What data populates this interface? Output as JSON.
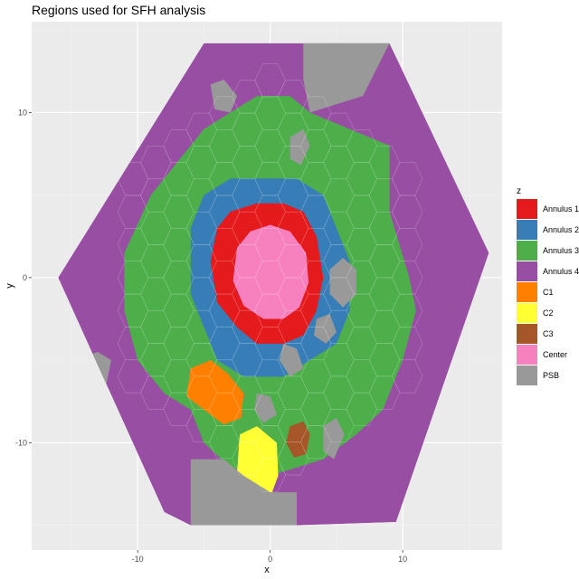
{
  "chart_data": {
    "type": "heatmap",
    "title": "Regions used for SFH analysis",
    "xlabel": "x",
    "ylabel": "y",
    "xlim": [
      -18,
      17.5
    ],
    "ylim": [
      -16.5,
      15.5
    ],
    "x_ticks": [
      -10,
      0,
      10
    ],
    "y_ticks": [
      -10,
      0,
      10
    ],
    "grid": true,
    "legend": {
      "title": "z",
      "position": "right",
      "entries": [
        {
          "label": "Annulus 1",
          "color": "#e41a1c"
        },
        {
          "label": "Annulus 2",
          "color": "#377eb8"
        },
        {
          "label": "Annulus 3",
          "color": "#4daf4a"
        },
        {
          "label": "Annulus 4",
          "color": "#984ea3"
        },
        {
          "label": "C1",
          "color": "#ff7f00"
        },
        {
          "label": "C2",
          "color": "#ffff33"
        },
        {
          "label": "C3",
          "color": "#a65628"
        },
        {
          "label": "Center",
          "color": "#f781bf"
        },
        {
          "label": "PSB",
          "color": "#999999"
        }
      ]
    },
    "outer_boundary": [
      [
        -5,
        14.2
      ],
      [
        9,
        14.2
      ],
      [
        16.5,
        1.5
      ],
      [
        9.5,
        -14.8
      ],
      [
        2,
        -15
      ],
      [
        -6,
        -15
      ],
      [
        -8,
        -14.2
      ],
      [
        -16,
        0
      ]
    ],
    "regions": [
      {
        "z": "Annulus 3",
        "polygon": [
          [
            -11,
            1.5
          ],
          [
            -9,
            5
          ],
          [
            -7,
            7
          ],
          [
            -5,
            9
          ],
          [
            -3,
            10
          ],
          [
            -1,
            11
          ],
          [
            1.5,
            11
          ],
          [
            3,
            10
          ],
          [
            6,
            9
          ],
          [
            9,
            8
          ],
          [
            9,
            4
          ],
          [
            10.5,
            0
          ],
          [
            11,
            -2
          ],
          [
            10,
            -5
          ],
          [
            8.5,
            -8
          ],
          [
            6.5,
            -9.5
          ],
          [
            4,
            -11
          ],
          [
            0,
            -12
          ],
          [
            -3,
            -11.5
          ],
          [
            -5,
            -10
          ],
          [
            -6,
            -8
          ],
          [
            -8,
            -7
          ],
          [
            -10,
            -5
          ],
          [
            -11,
            -2
          ]
        ]
      },
      {
        "z": "Annulus 2",
        "polygon": [
          [
            -6,
            3
          ],
          [
            -5,
            5
          ],
          [
            -3,
            6
          ],
          [
            -1,
            6
          ],
          [
            2,
            6
          ],
          [
            4,
            5
          ],
          [
            5,
            3
          ],
          [
            6,
            1
          ],
          [
            6,
            -2
          ],
          [
            5,
            -4
          ],
          [
            3,
            -5
          ],
          [
            1,
            -6
          ],
          [
            -2,
            -6
          ],
          [
            -4,
            -5
          ],
          [
            -5,
            -3
          ],
          [
            -6,
            -1
          ]
        ]
      },
      {
        "z": "Annulus 1",
        "polygon": [
          [
            -4,
            3
          ],
          [
            -3,
            4
          ],
          [
            -1,
            4.5
          ],
          [
            1,
            4.5
          ],
          [
            2.5,
            4
          ],
          [
            3.5,
            2.5
          ],
          [
            4,
            0
          ],
          [
            3.5,
            -2
          ],
          [
            2.5,
            -3.5
          ],
          [
            1,
            -4
          ],
          [
            -1,
            -4
          ],
          [
            -2.5,
            -3
          ],
          [
            -4,
            -1.5
          ],
          [
            -4.5,
            1
          ]
        ]
      },
      {
        "z": "Center",
        "polygon": [
          [
            -2.5,
            1.8
          ],
          [
            -1.5,
            2.8
          ],
          [
            0,
            3.2
          ],
          [
            1.5,
            2.8
          ],
          [
            2.7,
            1.5
          ],
          [
            2.9,
            -0.3
          ],
          [
            2.2,
            -1.8
          ],
          [
            1,
            -2.5
          ],
          [
            -0.5,
            -2.5
          ],
          [
            -2,
            -1.7
          ],
          [
            -2.8,
            -0.2
          ]
        ]
      },
      {
        "z": "C1",
        "polygon": [
          [
            -6,
            -5.5
          ],
          [
            -4.5,
            -5
          ],
          [
            -3.2,
            -5.8
          ],
          [
            -2,
            -7
          ],
          [
            -2.2,
            -8.5
          ],
          [
            -3.5,
            -8.9
          ],
          [
            -5,
            -8
          ],
          [
            -6.3,
            -7.2
          ]
        ]
      },
      {
        "z": "C2",
        "polygon": [
          [
            -2.3,
            -9.5
          ],
          [
            -1,
            -9
          ],
          [
            0.5,
            -10
          ],
          [
            0.6,
            -12
          ],
          [
            0,
            -13.3
          ],
          [
            -1.2,
            -13
          ],
          [
            -2.5,
            -11.8
          ]
        ]
      },
      {
        "z": "C3",
        "polygon": [
          [
            1.5,
            -9
          ],
          [
            2.5,
            -8.7
          ],
          [
            3,
            -9.5
          ],
          [
            2.7,
            -10.7
          ],
          [
            1.8,
            -10.9
          ],
          [
            1.2,
            -10
          ]
        ]
      },
      {
        "z": "PSB",
        "polygon": [
          [
            2.5,
            14.2
          ],
          [
            9,
            14.2
          ],
          [
            7,
            11
          ],
          [
            3,
            10
          ],
          [
            2.5,
            12
          ]
        ]
      },
      {
        "z": "PSB",
        "polygon": [
          [
            -4.5,
            11.7
          ],
          [
            -3.5,
            12
          ],
          [
            -2.5,
            11
          ],
          [
            -3,
            10
          ],
          [
            -4.2,
            10.2
          ]
        ]
      },
      {
        "z": "PSB",
        "polygon": [
          [
            -15,
            -5
          ],
          [
            -13,
            -4.5
          ],
          [
            -12,
            -5
          ],
          [
            -12.5,
            -7
          ],
          [
            -14,
            -8
          ],
          [
            -15.5,
            -6.5
          ]
        ]
      },
      {
        "z": "PSB",
        "polygon": [
          [
            1.5,
            8.5
          ],
          [
            2.5,
            9
          ],
          [
            3,
            8
          ],
          [
            2.3,
            6.8
          ],
          [
            1.5,
            7.2
          ]
        ]
      },
      {
        "z": "PSB",
        "polygon": [
          [
            4.5,
            0.5
          ],
          [
            5.5,
            1.2
          ],
          [
            6.5,
            0.5
          ],
          [
            6.5,
            -1
          ],
          [
            5.5,
            -1.8
          ],
          [
            4.5,
            -1
          ]
        ]
      },
      {
        "z": "PSB",
        "polygon": [
          [
            3.5,
            -2.5
          ],
          [
            4.5,
            -2.2
          ],
          [
            5,
            -3.3
          ],
          [
            4.2,
            -4
          ],
          [
            3.3,
            -3.5
          ]
        ]
      },
      {
        "z": "PSB",
        "polygon": [
          [
            1,
            -4
          ],
          [
            2,
            -4.3
          ],
          [
            2.5,
            -5.5
          ],
          [
            1.5,
            -6
          ],
          [
            0.7,
            -5
          ]
        ]
      },
      {
        "z": "PSB",
        "polygon": [
          [
            -1,
            -7
          ],
          [
            0,
            -7.2
          ],
          [
            0.5,
            -8.3
          ],
          [
            -0.5,
            -8.8
          ],
          [
            -1.2,
            -8
          ]
        ]
      },
      {
        "z": "PSB",
        "polygon": [
          [
            4,
            -9
          ],
          [
            5,
            -8.5
          ],
          [
            5.6,
            -9.5
          ],
          [
            4.8,
            -11
          ],
          [
            4,
            -10.5
          ]
        ]
      },
      {
        "z": "PSB",
        "polygon": [
          [
            -6,
            -11
          ],
          [
            -3.5,
            -11
          ],
          [
            -2,
            -12
          ],
          [
            0,
            -13
          ],
          [
            2,
            -13
          ],
          [
            2,
            -15
          ],
          [
            -6,
            -15
          ],
          [
            -6,
            -12.5
          ]
        ]
      }
    ]
  }
}
